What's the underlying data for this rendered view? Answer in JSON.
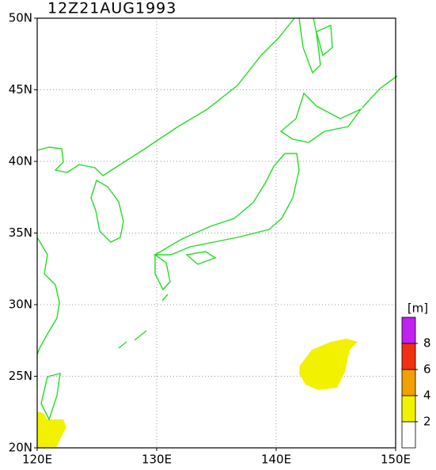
{
  "title": "12Z21AUG1993",
  "map": {
    "lonlim": [
      120,
      150
    ],
    "latlim": [
      20,
      50
    ],
    "lon_ticks": [
      {
        "value": 120,
        "label": "120E"
      },
      {
        "value": 130,
        "label": "130E"
      },
      {
        "value": 140,
        "label": "140E"
      },
      {
        "value": 150,
        "label": "150E"
      }
    ],
    "lat_ticks": [
      {
        "value": 20,
        "label": "20N"
      },
      {
        "value": 25,
        "label": "25N"
      },
      {
        "value": 30,
        "label": "30N"
      },
      {
        "value": 35,
        "label": "35N"
      },
      {
        "value": 40,
        "label": "40N"
      },
      {
        "value": 45,
        "label": "45N"
      },
      {
        "value": 50,
        "label": "50N"
      }
    ],
    "grid": true
  },
  "legend": {
    "unit": "[m]",
    "levels": [
      2,
      4,
      6,
      8
    ],
    "colors": [
      "#ffffff",
      "#f2f200",
      "#f0a000",
      "#f03010",
      "#c020f0"
    ]
  }
}
